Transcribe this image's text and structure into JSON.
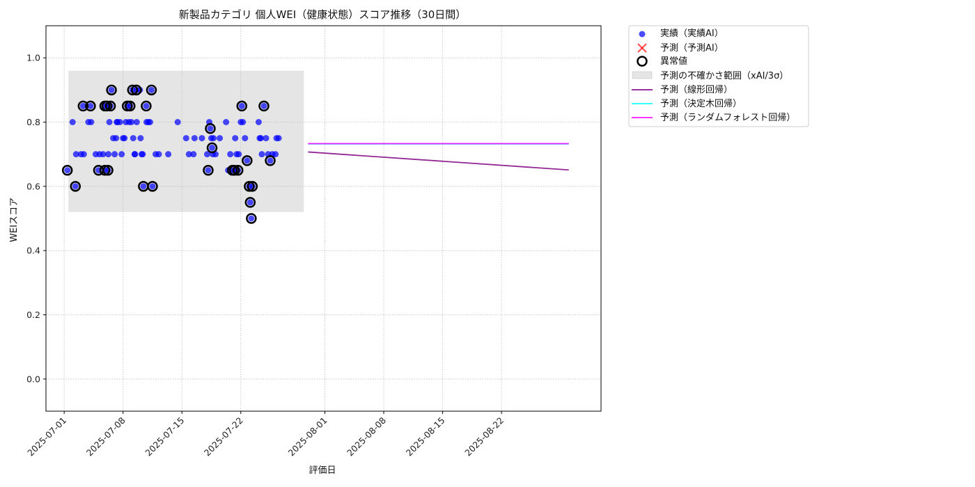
{
  "chart_data": {
    "type": "scatter",
    "title": "新製品カテゴリ 個人WEI（健康状態）スコア推移（30日間）",
    "xlabel": "評価日",
    "ylabel": "WEIスコア",
    "ylim": [
      -0.1,
      1.1
    ],
    "xlim": [
      "2025-06-28T20:00",
      "2025-09-02T20:00"
    ],
    "yticks": [
      0.0,
      0.2,
      0.4,
      0.6,
      0.8,
      1.0
    ],
    "ytick_labels": [
      "0.0",
      "0.2",
      "0.4",
      "0.6",
      "0.8",
      "1.0"
    ],
    "xticks": [
      "2025-07-01",
      "2025-07-08",
      "2025-07-15",
      "2025-07-22",
      "2025-08-01",
      "2025-08-08",
      "2025-08-15",
      "2025-08-22"
    ],
    "grid": true,
    "legend_position": "outside-right",
    "colors": {
      "actual": "#0000ff",
      "predicted_ai": "#ff0000",
      "anomaly": "#000000",
      "uncertainty": "#d3d3d3",
      "linear": "#800080",
      "tree": "#00ffff",
      "forest": "#ff00ff"
    },
    "uncertainty_band": {
      "x_start": "2025-07-01T12:00",
      "x_end": "2025-07-29T12:00",
      "y_low": 0.52,
      "y_high": 0.96
    },
    "series": [
      {
        "name": "実績（実績AI）",
        "kind": "scatter",
        "points": [
          [
            "2025-07-01T09:00",
            0.65
          ],
          [
            "2025-07-02T00:00",
            0.8
          ],
          [
            "2025-07-02T10:00",
            0.7
          ],
          [
            "2025-07-02T08:00",
            0.6
          ],
          [
            "2025-07-03T00:00",
            0.7
          ],
          [
            "2025-07-03T08:00",
            0.7
          ],
          [
            "2025-07-03T06:00",
            0.85
          ],
          [
            "2025-07-03T21:00",
            0.8
          ],
          [
            "2025-07-04T03:00",
            0.85
          ],
          [
            "2025-07-04T05:00",
            0.8
          ],
          [
            "2025-07-04T18:00",
            0.7
          ],
          [
            "2025-07-05T02:00",
            0.65
          ],
          [
            "2025-07-05T05:00",
            0.7
          ],
          [
            "2025-07-05T15:00",
            0.7
          ],
          [
            "2025-07-05T20:00",
            0.85
          ],
          [
            "2025-07-05T20:00",
            0.65
          ],
          [
            "2025-07-06T02:00",
            0.85
          ],
          [
            "2025-07-06T05:00",
            0.65
          ],
          [
            "2025-07-06T06:00",
            0.7
          ],
          [
            "2025-07-06T09:00",
            0.8
          ],
          [
            "2025-07-06T12:00",
            0.85
          ],
          [
            "2025-07-06T15:00",
            0.9
          ],
          [
            "2025-07-06T20:00",
            0.75
          ],
          [
            "2025-07-07T00:00",
            0.7
          ],
          [
            "2025-07-07T04:00",
            0.75
          ],
          [
            "2025-07-07T06:00",
            0.8
          ],
          [
            "2025-07-07T08:00",
            0.8
          ],
          [
            "2025-07-07T15:00",
            0.8
          ],
          [
            "2025-07-07T20:00",
            0.7
          ],
          [
            "2025-07-08T00:00",
            0.75
          ],
          [
            "2025-07-08T04:00",
            0.75
          ],
          [
            "2025-07-08T08:00",
            0.8
          ],
          [
            "2025-07-08T12:00",
            0.85
          ],
          [
            "2025-07-08T17:00",
            0.8
          ],
          [
            "2025-07-08T20:00",
            0.85
          ],
          [
            "2025-07-09T00:00",
            0.8
          ],
          [
            "2025-07-09T03:00",
            0.9
          ],
          [
            "2025-07-09T05:00",
            0.75
          ],
          [
            "2025-07-09T09:00",
            0.7
          ],
          [
            "2025-07-09T10:00",
            0.7
          ],
          [
            "2025-07-09T14:00",
            0.9
          ],
          [
            "2025-07-09T15:00",
            0.8
          ],
          [
            "2025-07-10T00:00",
            0.9
          ],
          [
            "2025-07-10T02:00",
            0.75
          ],
          [
            "2025-07-10T05:00",
            0.7
          ],
          [
            "2025-07-10T08:00",
            0.7
          ],
          [
            "2025-07-10T10:00",
            0.6
          ],
          [
            "2025-07-10T18:00",
            0.85
          ],
          [
            "2025-07-10T19:00",
            0.8
          ],
          [
            "2025-07-11T00:00",
            0.8
          ],
          [
            "2025-07-11T05:00",
            0.8
          ],
          [
            "2025-07-11T09:00",
            0.9
          ],
          [
            "2025-07-11T12:00",
            0.6
          ],
          [
            "2025-07-11T21:00",
            0.7
          ],
          [
            "2025-07-12T06:00",
            0.7
          ],
          [
            "2025-07-13T09:00",
            0.7
          ],
          [
            "2025-07-14T12:00",
            0.8
          ],
          [
            "2025-07-15T12:00",
            0.75
          ],
          [
            "2025-07-15T20:00",
            0.7
          ],
          [
            "2025-07-16T09:00",
            0.7
          ],
          [
            "2025-07-16T12:00",
            0.75
          ],
          [
            "2025-07-17T09:00",
            0.75
          ],
          [
            "2025-07-18T00:00",
            0.7
          ],
          [
            "2025-07-18T03:00",
            0.65
          ],
          [
            "2025-07-18T06:00",
            0.8
          ],
          [
            "2025-07-18T09:00",
            0.78
          ],
          [
            "2025-07-18T12:00",
            0.75
          ],
          [
            "2025-07-18T14:00",
            0.72
          ],
          [
            "2025-07-18T16:00",
            0.7
          ],
          [
            "2025-07-18T18:00",
            0.75
          ],
          [
            "2025-07-19T00:00",
            0.7
          ],
          [
            "2025-07-19T12:00",
            0.75
          ],
          [
            "2025-07-20T06:00",
            0.8
          ],
          [
            "2025-07-20T12:00",
            0.65
          ],
          [
            "2025-07-20T18:00",
            0.7
          ],
          [
            "2025-07-21T00:00",
            0.65
          ],
          [
            "2025-07-21T06:00",
            0.65
          ],
          [
            "2025-07-21T08:00",
            0.75
          ],
          [
            "2025-07-21T12:00",
            0.7
          ],
          [
            "2025-07-21T16:00",
            0.65
          ],
          [
            "2025-07-21T18:00",
            0.7
          ],
          [
            "2025-07-22T00:00",
            0.8
          ],
          [
            "2025-07-22T03:00",
            0.85
          ],
          [
            "2025-07-22T06:00",
            0.8
          ],
          [
            "2025-07-22T12:00",
            0.75
          ],
          [
            "2025-07-22T18:00",
            0.68
          ],
          [
            "2025-07-23T00:00",
            0.6
          ],
          [
            "2025-07-23T03:00",
            0.55
          ],
          [
            "2025-07-23T06:00",
            0.5
          ],
          [
            "2025-07-23T09:00",
            0.6
          ],
          [
            "2025-07-24T03:00",
            0.8
          ],
          [
            "2025-07-24T06:00",
            0.75
          ],
          [
            "2025-07-24T09:00",
            0.75
          ],
          [
            "2025-07-24T12:00",
            0.7
          ],
          [
            "2025-07-24T18:00",
            0.85
          ],
          [
            "2025-07-25T00:00",
            0.75
          ],
          [
            "2025-07-25T06:00",
            0.7
          ],
          [
            "2025-07-25T12:00",
            0.68
          ],
          [
            "2025-07-25T18:00",
            0.7
          ],
          [
            "2025-07-26T03:00",
            0.7
          ],
          [
            "2025-07-26T06:00",
            0.75
          ],
          [
            "2025-07-26T12:00",
            0.75
          ]
        ]
      },
      {
        "name": "予測（予測AI）",
        "kind": "scatter",
        "points": []
      },
      {
        "name": "異常値",
        "kind": "anomaly",
        "points": [
          [
            "2025-07-01T09:00",
            0.65
          ],
          [
            "2025-07-02T08:00",
            0.6
          ],
          [
            "2025-07-03T06:00",
            0.85
          ],
          [
            "2025-07-04T03:00",
            0.85
          ],
          [
            "2025-07-05T02:00",
            0.65
          ],
          [
            "2025-07-05T20:00",
            0.85
          ],
          [
            "2025-07-05T20:00",
            0.65
          ],
          [
            "2025-07-06T02:00",
            0.85
          ],
          [
            "2025-07-06T05:00",
            0.65
          ],
          [
            "2025-07-06T12:00",
            0.85
          ],
          [
            "2025-07-06T15:00",
            0.9
          ],
          [
            "2025-07-08T12:00",
            0.85
          ],
          [
            "2025-07-08T20:00",
            0.85
          ],
          [
            "2025-07-09T03:00",
            0.9
          ],
          [
            "2025-07-09T14:00",
            0.9
          ],
          [
            "2025-07-10T10:00",
            0.6
          ],
          [
            "2025-07-10T18:00",
            0.85
          ],
          [
            "2025-07-11T09:00",
            0.9
          ],
          [
            "2025-07-11T12:00",
            0.6
          ],
          [
            "2025-07-18T03:00",
            0.65
          ],
          [
            "2025-07-18T09:00",
            0.78
          ],
          [
            "2025-07-18T14:00",
            0.72
          ],
          [
            "2025-07-21T00:00",
            0.65
          ],
          [
            "2025-07-21T06:00",
            0.65
          ],
          [
            "2025-07-21T16:00",
            0.65
          ],
          [
            "2025-07-22T03:00",
            0.85
          ],
          [
            "2025-07-22T18:00",
            0.68
          ],
          [
            "2025-07-23T00:00",
            0.6
          ],
          [
            "2025-07-23T03:00",
            0.55
          ],
          [
            "2025-07-23T06:00",
            0.5
          ],
          [
            "2025-07-23T09:00",
            0.6
          ],
          [
            "2025-07-24T18:00",
            0.85
          ],
          [
            "2025-07-25T12:00",
            0.68
          ]
        ]
      },
      {
        "name": "予測の不確かさ範囲（xAI/3σ）",
        "kind": "band"
      },
      {
        "name": "予測（線形回帰）",
        "kind": "line",
        "points": [
          [
            "2025-07-30T00:00",
            0.707
          ],
          [
            "2025-08-30T00:00",
            0.651
          ]
        ]
      },
      {
        "name": "予測（決定木回帰）",
        "kind": "line",
        "points": [
          [
            "2025-07-30T00:00",
            0.732
          ],
          [
            "2025-08-30T00:00",
            0.732
          ]
        ]
      },
      {
        "name": "予測（ランダムフォレスト回帰）",
        "kind": "line",
        "points": [
          [
            "2025-07-30T00:00",
            0.733
          ],
          [
            "2025-08-30T00:00",
            0.733
          ]
        ]
      }
    ]
  }
}
